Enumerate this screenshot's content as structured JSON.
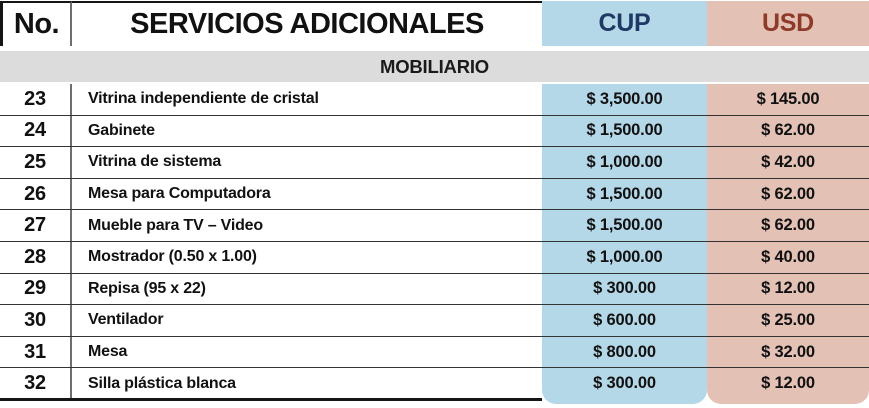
{
  "table": {
    "headers": {
      "no": "No.",
      "service": "SERVICIOS ADICIONALES",
      "cup": "CUP",
      "usd": "USD"
    },
    "section": "MOBILIARIO",
    "rows": [
      {
        "no": "23",
        "service": "Vitrina independiente de cristal",
        "cup": "$ 3,500.00",
        "usd": "$ 145.00"
      },
      {
        "no": "24",
        "service": "Gabinete",
        "cup": "$ 1,500.00",
        "usd": "$ 62.00"
      },
      {
        "no": "25",
        "service": "Vitrina de sistema",
        "cup": "$ 1,000.00",
        "usd": "$ 42.00"
      },
      {
        "no": "26",
        "service": "Mesa para Computadora",
        "cup": "$ 1,500.00",
        "usd": "$ 62.00"
      },
      {
        "no": "27",
        "service": "Mueble para TV – Video",
        "cup": "$ 1,500.00",
        "usd": "$ 62.00"
      },
      {
        "no": "28",
        "service": "Mostrador (0.50 x 1.00)",
        "cup": "$ 1,000.00",
        "usd": "$ 40.00"
      },
      {
        "no": "29",
        "service": "Repisa (95 x 22)",
        "cup": "$ 300.00",
        "usd": "$ 12.00"
      },
      {
        "no": "30",
        "service": "Ventilador",
        "cup": "$ 600.00",
        "usd": "$ 25.00"
      },
      {
        "no": "31",
        "service": "Mesa",
        "cup": "$ 800.00",
        "usd": "$ 32.00"
      },
      {
        "no": "32",
        "service": "Silla plástica blanca",
        "cup": "$ 300.00",
        "usd": "$ 12.00"
      }
    ],
    "theme": {
      "cup-bg": "#B5D8E9",
      "usd-bg": "#E3C1B5",
      "cup-text": "#1F3864",
      "usd-text": "#8E3A28",
      "band-bg": "#DCDCDC"
    }
  }
}
